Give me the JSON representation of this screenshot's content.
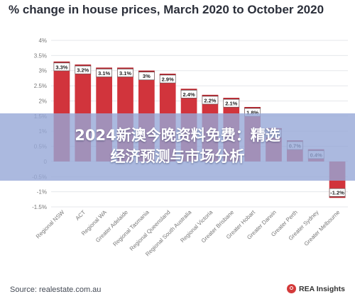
{
  "header": {
    "title": "% change in house prices, March 2020 to October 2020"
  },
  "banner": {
    "text": "2024新澳今晚资料免费：精选\n经济预测与市场分析"
  },
  "footer": {
    "source": "Source: realestate.com.au",
    "brand": "REA Insights"
  },
  "colors": {
    "bar": "#d1343c",
    "bar_label_border": "#555555",
    "grid": "#e5e7eb",
    "axis_text": "#777777"
  },
  "chart_data": {
    "type": "bar",
    "title": "% change in house prices, March 2020 to October 2020",
    "xlabel": "",
    "ylabel": "",
    "ylim": [
      -1.5,
      4
    ],
    "yticks": [
      "4%",
      "3.5%",
      "3%",
      "2.5%",
      "2%",
      "1.5%",
      "1%",
      "0.5%",
      "0",
      "-0.5%",
      "-1%",
      "-1.5%"
    ],
    "ytick_values": [
      4,
      3.5,
      3,
      2.5,
      2,
      1.5,
      1,
      0.5,
      0,
      -0.5,
      -1,
      -1.5
    ],
    "categories": [
      "Regional NSW",
      "ACT",
      "Regional WA",
      "Greater Adelaide",
      "Regional Tasmania",
      "Regional Queensland",
      "Regional South Australia",
      "Regional Victoria",
      "Greater Brisbane",
      "Greater Hobart",
      "Greater Darwin",
      "Greater Perth",
      "Greater Sydney",
      "Greater Melbourne"
    ],
    "values": [
      3.3,
      3.2,
      3.1,
      3.1,
      3.0,
      2.9,
      2.4,
      2.2,
      2.1,
      1.8,
      1.1,
      0.7,
      0.4,
      -1.2
    ],
    "value_labels": [
      "3.3%",
      "3.2%",
      "3.1%",
      "3.1%",
      "3%",
      "2.9%",
      "2.4%",
      "2.2%",
      "2.1%",
      "1.8%",
      "1.1%",
      "0.7%",
      "0.4%",
      "-1.2%"
    ],
    "grid": true,
    "legend": "none"
  }
}
